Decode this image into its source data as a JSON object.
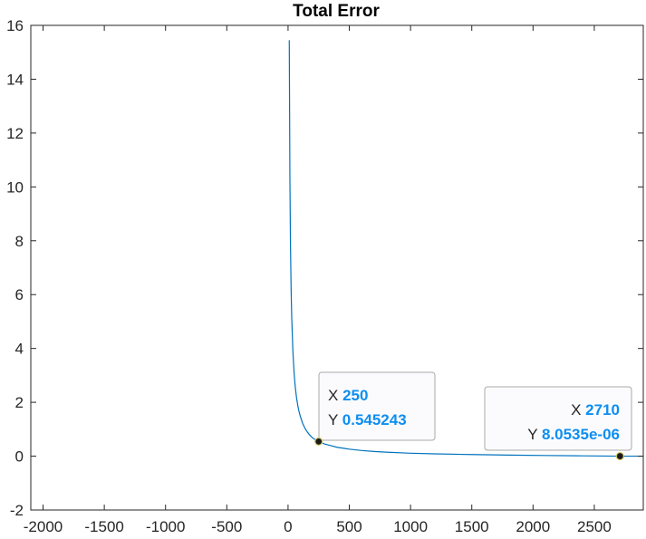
{
  "chart_data": {
    "type": "line",
    "title": "Total Error",
    "xlabel": "",
    "ylabel": "",
    "xlim": [
      -2100,
      2900
    ],
    "ylim": [
      -2,
      16
    ],
    "xticks": [
      "-2000",
      "-1500",
      "-1000",
      "-500",
      "0",
      "500",
      "1000",
      "1500",
      "2000",
      "2500"
    ],
    "yticks": [
      "-2",
      "0",
      "2",
      "4",
      "6",
      "8",
      "10",
      "12",
      "14",
      "16"
    ],
    "grid": false,
    "series": [
      {
        "color": "#0072bd",
        "x": [
          10,
          15,
          20,
          25,
          30,
          40,
          50,
          60,
          70,
          80,
          90,
          100,
          120,
          140,
          160,
          180,
          200,
          225,
          250,
          300,
          350,
          400,
          500,
          600,
          700,
          800,
          1000,
          1200,
          1500,
          1800,
          2100,
          2400,
          2710,
          2900
        ],
        "y": [
          15.45,
          10.4,
          7.8,
          6.2,
          5.15,
          3.85,
          3.05,
          2.52,
          2.15,
          1.87,
          1.65,
          1.48,
          1.21,
          1.02,
          0.88,
          0.77,
          0.68,
          0.6,
          0.545,
          0.45,
          0.39,
          0.33,
          0.26,
          0.21,
          0.175,
          0.15,
          0.11,
          0.085,
          0.06,
          0.04,
          0.025,
          0.012,
          8.0535e-06,
          0.0
        ]
      }
    ],
    "datatips": [
      {
        "x_key": "X",
        "x_value": "250",
        "y_key": "Y",
        "y_value": "0.545243",
        "x": 250,
        "y": 0.545243
      },
      {
        "x_key": "X",
        "x_value": "2710",
        "y_key": "Y",
        "y_value": "8.0535e-06",
        "x": 2710,
        "y": 8.0535e-06
      }
    ]
  }
}
